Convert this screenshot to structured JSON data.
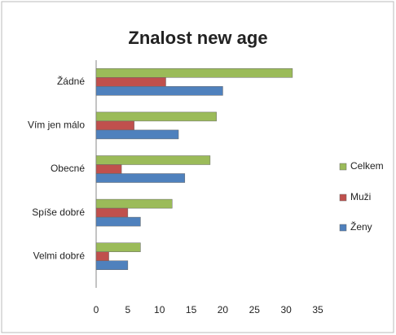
{
  "chart_data": {
    "type": "bar",
    "orientation": "horizontal",
    "title": "Znalost new age",
    "categories": [
      "Žádné",
      "Vím jen málo",
      "Obecné",
      "Spíše dobré",
      "Velmi dobré"
    ],
    "series": [
      {
        "name": "Celkem",
        "color": "#9bbb59",
        "values": [
          31,
          19,
          18,
          12,
          7
        ]
      },
      {
        "name": "Muži",
        "color": "#c0504d",
        "values": [
          11,
          6,
          4,
          5,
          2
        ]
      },
      {
        "name": "Ženy",
        "color": "#4f81bd",
        "values": [
          20,
          13,
          14,
          7,
          5
        ]
      }
    ],
    "xlim": [
      0,
      35
    ],
    "xticks": [
      0,
      5,
      10,
      15,
      20,
      25,
      30,
      35
    ],
    "grid": false,
    "legend": "right"
  }
}
